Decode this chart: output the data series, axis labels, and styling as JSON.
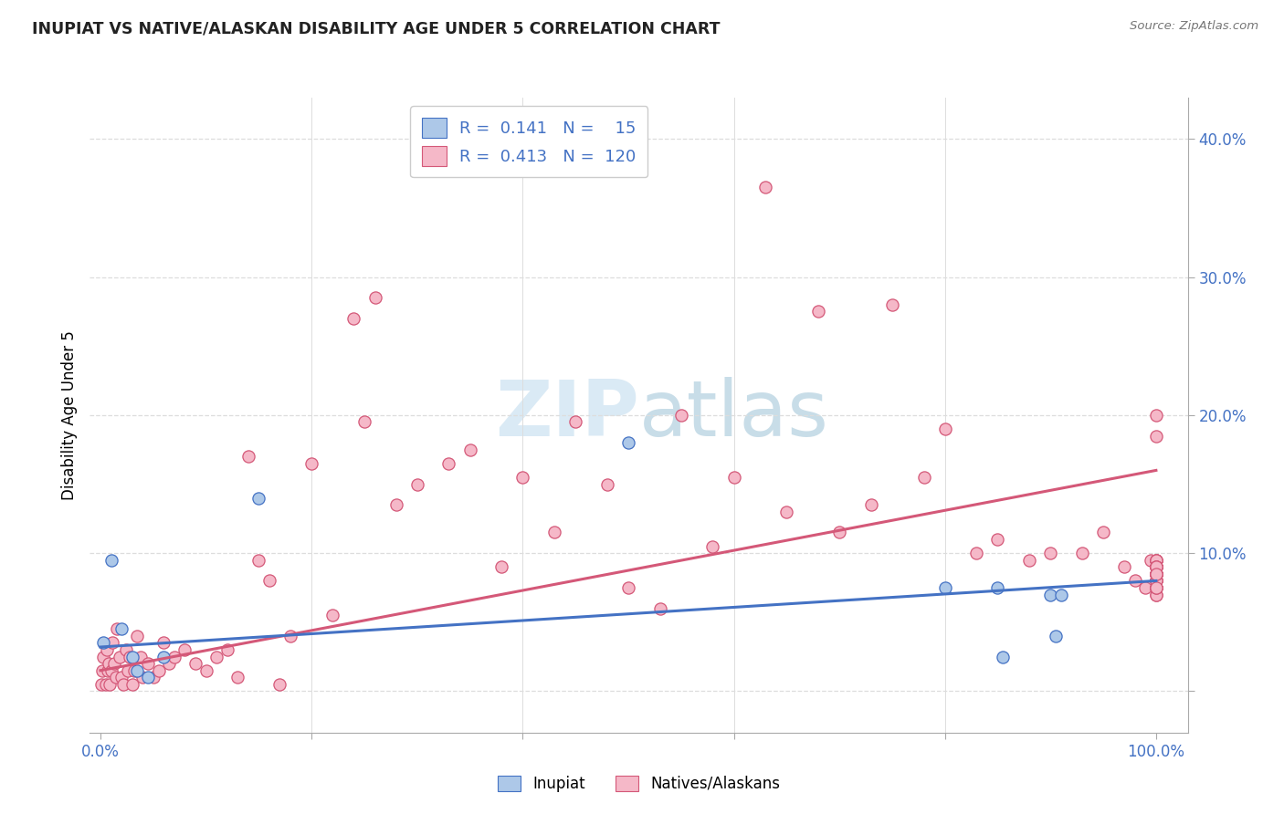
{
  "title": "INUPIAT VS NATIVE/ALASKAN DISABILITY AGE UNDER 5 CORRELATION CHART",
  "source": "Source: ZipAtlas.com",
  "ylabel": "Disability Age Under 5",
  "xlim": [
    -1,
    103
  ],
  "ylim": [
    -3,
    43
  ],
  "inupiat_R": 0.141,
  "inupiat_N": 15,
  "native_R": 0.413,
  "native_N": 120,
  "inupiat_color": "#adc8e8",
  "native_color": "#f5b8c8",
  "inupiat_line_color": "#4472c4",
  "native_line_color": "#d45878",
  "bg_color": "#ffffff",
  "grid_color": "#dddddd",
  "tick_color": "#4472c4",
  "title_color": "#222222",
  "watermark_color": "#daeaf5",
  "inupiat_x": [
    0.3,
    1.0,
    2.0,
    3.0,
    3.5,
    4.5,
    6.0,
    15.0,
    50.0,
    80.0,
    85.0,
    85.5,
    90.0,
    90.5,
    91.0
  ],
  "inupiat_y": [
    3.5,
    9.5,
    4.5,
    2.5,
    1.5,
    1.0,
    2.5,
    14.0,
    18.0,
    7.5,
    7.5,
    2.5,
    7.0,
    4.0,
    7.0
  ],
  "native_x": [
    0.1,
    0.2,
    0.3,
    0.5,
    0.6,
    0.7,
    0.8,
    0.9,
    1.0,
    1.1,
    1.3,
    1.5,
    1.6,
    1.8,
    2.0,
    2.2,
    2.4,
    2.6,
    2.8,
    3.0,
    3.2,
    3.5,
    3.8,
    4.0,
    4.5,
    5.0,
    5.5,
    6.0,
    6.5,
    7.0,
    8.0,
    9.0,
    10.0,
    11.0,
    12.0,
    13.0,
    14.0,
    15.0,
    16.0,
    17.0,
    18.0,
    20.0,
    22.0,
    24.0,
    25.0,
    26.0,
    28.0,
    30.0,
    33.0,
    35.0,
    38.0,
    40.0,
    43.0,
    45.0,
    48.0,
    50.0,
    53.0,
    55.0,
    58.0,
    60.0,
    63.0,
    65.0,
    68.0,
    70.0,
    73.0,
    75.0,
    78.0,
    80.0,
    83.0,
    85.0,
    88.0,
    90.0,
    93.0,
    95.0,
    97.0,
    98.0,
    99.0,
    99.5,
    100.0,
    100.0,
    100.0,
    100.0,
    100.0,
    100.0,
    100.0,
    100.0,
    100.0,
    100.0,
    100.0,
    100.0,
    100.0,
    100.0,
    100.0,
    100.0,
    100.0,
    100.0,
    100.0,
    100.0,
    100.0,
    100.0,
    100.0,
    100.0,
    100.0,
    100.0,
    100.0,
    100.0,
    100.0,
    100.0,
    100.0,
    100.0,
    100.0,
    100.0,
    100.0,
    100.0,
    100.0,
    100.0
  ],
  "native_y": [
    0.5,
    1.5,
    2.5,
    0.5,
    3.0,
    1.5,
    2.0,
    0.5,
    1.5,
    3.5,
    2.0,
    1.0,
    4.5,
    2.5,
    1.0,
    0.5,
    3.0,
    1.5,
    2.5,
    0.5,
    1.5,
    4.0,
    2.5,
    1.0,
    2.0,
    1.0,
    1.5,
    3.5,
    2.0,
    2.5,
    3.0,
    2.0,
    1.5,
    2.5,
    3.0,
    1.0,
    17.0,
    9.5,
    8.0,
    0.5,
    4.0,
    16.5,
    5.5,
    27.0,
    19.5,
    28.5,
    13.5,
    15.0,
    16.5,
    17.5,
    9.0,
    15.5,
    11.5,
    19.5,
    15.0,
    7.5,
    6.0,
    20.0,
    10.5,
    15.5,
    36.5,
    13.0,
    27.5,
    11.5,
    13.5,
    28.0,
    15.5,
    19.0,
    10.0,
    11.0,
    9.5,
    10.0,
    10.0,
    11.5,
    9.0,
    8.0,
    7.5,
    9.5,
    20.0,
    9.0,
    8.5,
    9.5,
    8.5,
    9.0,
    8.5,
    7.0,
    9.0,
    8.5,
    9.5,
    9.0,
    8.5,
    8.0,
    7.5,
    9.0,
    8.5,
    9.5,
    9.0,
    8.5,
    8.0,
    7.5,
    9.0,
    7.5,
    18.5,
    8.5,
    7.0,
    9.5,
    8.0,
    8.5,
    7.5,
    9.0,
    8.0,
    7.5,
    9.0,
    8.5,
    9.0,
    8.5
  ],
  "native_line_start_y": 1.5,
  "native_line_end_y": 16.0,
  "inupiat_line_start_y": 3.2,
  "inupiat_line_end_y": 8.0
}
